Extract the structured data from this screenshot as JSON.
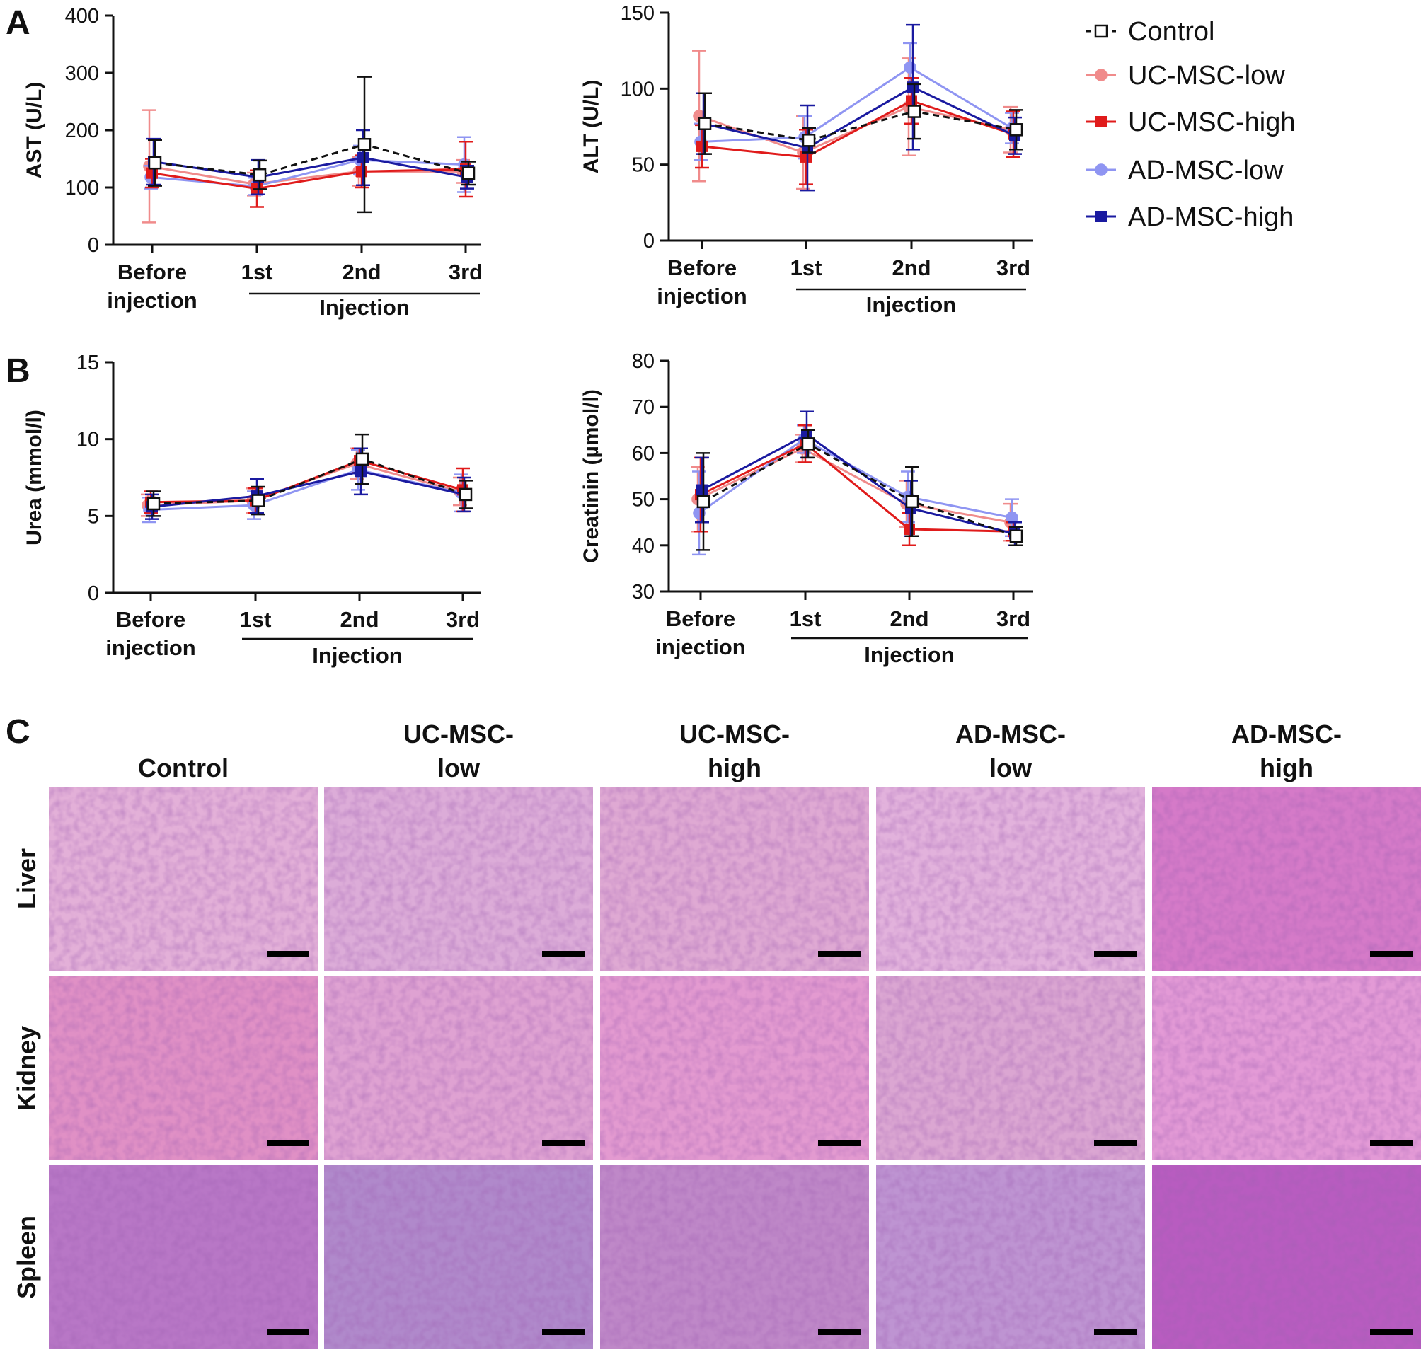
{
  "panel_labels": [
    "A",
    "B",
    "C"
  ],
  "legend": [
    {
      "name": "Control",
      "color": "#111111",
      "marker": "open-square",
      "dashed": true
    },
    {
      "name": "UC-MSC-low",
      "color": "#f08b8b",
      "marker": "circle",
      "dashed": false
    },
    {
      "name": "UC-MSC-high",
      "color": "#e01b1b",
      "marker": "square",
      "dashed": false
    },
    {
      "name": "AD-MSC-low",
      "color": "#8f95f2",
      "marker": "circle",
      "dashed": false
    },
    {
      "name": "AD-MSC-high",
      "color": "#1a1aa0",
      "marker": "square",
      "dashed": false
    }
  ],
  "chart_data": [
    {
      "type": "line",
      "id": "ast",
      "ylabel": "AST (U/L)",
      "ylim": [
        0,
        400
      ],
      "yticks": [
        "0",
        "100",
        "200",
        "300",
        "400"
      ],
      "categories": [
        [
          "Before",
          "injection"
        ],
        [
          "1st"
        ],
        [
          "2nd"
        ],
        [
          "3rd"
        ]
      ],
      "group_label": "Injection",
      "series": [
        {
          "name": "Control",
          "values": [
            143,
            122,
            175,
            125
          ],
          "err": [
            40,
            25,
            118,
            20
          ]
        },
        {
          "name": "UC-MSC-low",
          "values": [
            137,
            106,
            128,
            128
          ],
          "err": [
            98,
            20,
            25,
            20
          ]
        },
        {
          "name": "UC-MSC-high",
          "values": [
            125,
            98,
            128,
            132
          ],
          "err": [
            25,
            32,
            28,
            48
          ]
        },
        {
          "name": "AD-MSC-low",
          "values": [
            118,
            102,
            148,
            140
          ],
          "err": [
            20,
            15,
            25,
            48
          ]
        },
        {
          "name": "AD-MSC-high",
          "values": [
            145,
            118,
            152,
            118
          ],
          "err": [
            40,
            30,
            48,
            20
          ]
        }
      ]
    },
    {
      "type": "line",
      "id": "alt",
      "ylabel": "ALT (U/L)",
      "ylim": [
        0,
        150
      ],
      "yticks": [
        "0",
        "50",
        "100",
        "150"
      ],
      "categories": [
        [
          "Before",
          "injection"
        ],
        [
          "1st"
        ],
        [
          "2nd"
        ],
        [
          "3rd"
        ]
      ],
      "group_label": "Injection",
      "series": [
        {
          "name": "Control",
          "values": [
            77,
            66,
            85,
            73
          ],
          "err": [
            20,
            8,
            18,
            13
          ]
        },
        {
          "name": "UC-MSC-low",
          "values": [
            82,
            58,
            88,
            73
          ],
          "err": [
            43,
            24,
            32,
            15
          ]
        },
        {
          "name": "UC-MSC-high",
          "values": [
            62,
            55,
            92,
            70
          ],
          "err": [
            14,
            18,
            15,
            15
          ]
        },
        {
          "name": "AD-MSC-low",
          "values": [
            65,
            68,
            114,
            74
          ],
          "err": [
            12,
            14,
            16,
            10
          ]
        },
        {
          "name": "AD-MSC-high",
          "values": [
            77,
            61,
            101,
            69
          ],
          "err": [
            20,
            28,
            41,
            12
          ]
        }
      ]
    },
    {
      "type": "line",
      "id": "urea",
      "ylabel": "Urea (mmol/l)",
      "ylim": [
        0,
        15
      ],
      "yticks": [
        "0",
        "5",
        "10",
        "15"
      ],
      "categories": [
        [
          "Before",
          "injection"
        ],
        [
          "1st"
        ],
        [
          "2nd"
        ],
        [
          "3rd"
        ]
      ],
      "group_label": "Injection",
      "series": [
        {
          "name": "Control",
          "values": [
            5.8,
            6.0,
            8.7,
            6.4
          ],
          "err": [
            0.8,
            0.9,
            1.6,
            0.9
          ]
        },
        {
          "name": "UC-MSC-low",
          "values": [
            5.7,
            6.0,
            8.4,
            6.6
          ],
          "err": [
            0.7,
            0.8,
            1.0,
            0.9
          ]
        },
        {
          "name": "UC-MSC-high",
          "values": [
            5.9,
            6.0,
            8.6,
            6.7
          ],
          "err": [
            0.7,
            0.8,
            0.8,
            1.4
          ]
        },
        {
          "name": "AD-MSC-low",
          "values": [
            5.4,
            5.7,
            8.0,
            6.5
          ],
          "err": [
            0.8,
            0.9,
            1.3,
            1.2
          ]
        },
        {
          "name": "AD-MSC-high",
          "values": [
            5.6,
            6.3,
            7.9,
            6.4
          ],
          "err": [
            0.8,
            1.1,
            1.5,
            1.1
          ]
        }
      ]
    },
    {
      "type": "line",
      "id": "creatinin",
      "ylabel": "Creatinin (µmol/l)",
      "ylim": [
        30,
        80
      ],
      "yticks": [
        "30",
        "40",
        "50",
        "60",
        "70",
        "80"
      ],
      "categories": [
        [
          "Before",
          "injection"
        ],
        [
          "1st"
        ],
        [
          "2nd"
        ],
        [
          "3rd"
        ]
      ],
      "group_label": "Injection",
      "series": [
        {
          "name": "Control",
          "values": [
            49.5,
            62,
            49.5,
            42
          ],
          "err": [
            10.5,
            3,
            7.5,
            2
          ]
        },
        {
          "name": "UC-MSC-low",
          "values": [
            50,
            61,
            49,
            45
          ],
          "err": [
            7,
            3,
            5,
            4
          ]
        },
        {
          "name": "UC-MSC-high",
          "values": [
            51,
            62,
            43.5,
            43
          ],
          "err": [
            8,
            4,
            3.5,
            2
          ]
        },
        {
          "name": "AD-MSC-low",
          "values": [
            47,
            63,
            50.5,
            46
          ],
          "err": [
            9,
            3,
            5.5,
            4
          ]
        },
        {
          "name": "AD-MSC-high",
          "values": [
            52,
            64,
            48,
            42.5
          ],
          "err": [
            7,
            5,
            6,
            2.5
          ]
        }
      ]
    }
  ],
  "histology": {
    "columns": [
      {
        "line1": "Control",
        "line2": ""
      },
      {
        "line1": "UC-MSC-",
        "line2": "low"
      },
      {
        "line1": "UC-MSC-",
        "line2": "high"
      },
      {
        "line1": "AD-MSC-",
        "line2": "low"
      },
      {
        "line1": "AD-MSC-",
        "line2": "high"
      }
    ],
    "rows": [
      "Liver",
      "Kidney",
      "Spleen"
    ],
    "tissue_colors": {
      "Liver": [
        "#e3b0d8",
        "#dcacd8",
        "#dfa9d3",
        "#e2b2dc",
        "#d57ac8"
      ],
      "Kidney": [
        "#e090c5",
        "#dfa2d2",
        "#e39ad0",
        "#dba6d2",
        "#e39ad6"
      ],
      "Spleen": [
        "#b877c6",
        "#b089cb",
        "#bf88c8",
        "#be94d2",
        "#b85cc0"
      ]
    }
  }
}
